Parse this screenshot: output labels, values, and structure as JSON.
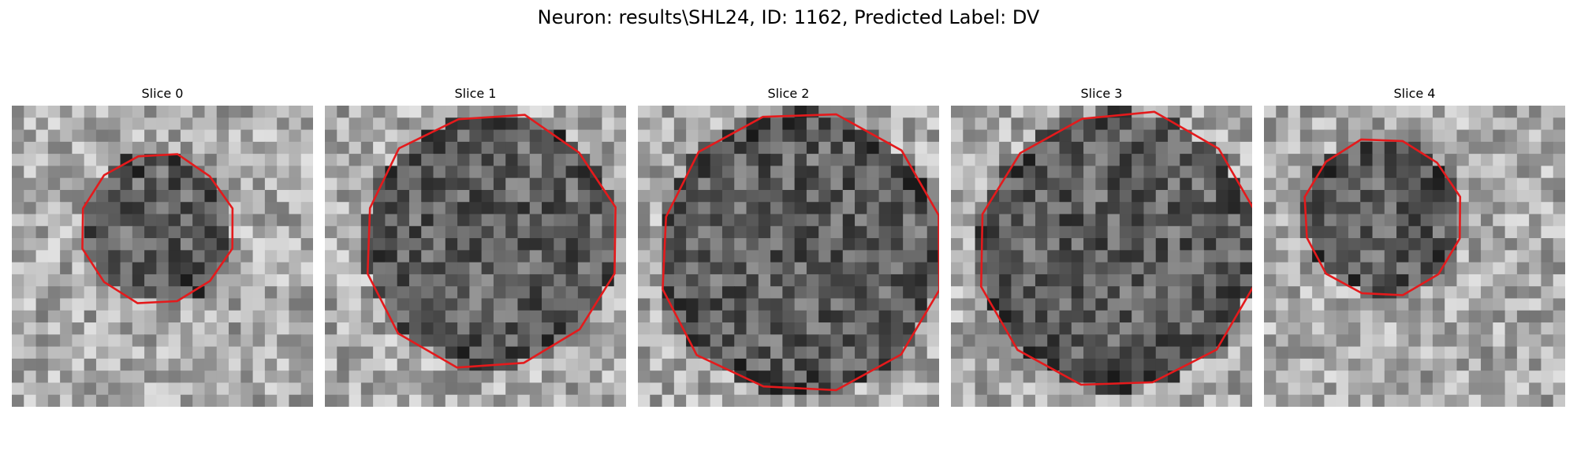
{
  "figure": {
    "title": "Neuron: results\\SHL24, ID: 1162, Predicted Label: DV"
  },
  "panels": [
    {
      "title": "Slice 0",
      "cell_radius": 6.3,
      "cell_cx": 12.1,
      "cell_cy": 10.2,
      "contour_color": "#e41a1c"
    },
    {
      "title": "Slice 1",
      "cell_radius": 10.6,
      "cell_cx": 13.8,
      "cell_cy": 11.2,
      "contour_color": "#e41a1c"
    },
    {
      "title": "Slice 2",
      "cell_radius": 11.8,
      "cell_cx": 13.4,
      "cell_cy": 12.2,
      "contour_color": "#e41a1c"
    },
    {
      "title": "Slice 3",
      "cell_radius": 11.6,
      "cell_cx": 13.8,
      "cell_cy": 12.0,
      "contour_color": "#e41a1c"
    },
    {
      "title": "Slice 4",
      "cell_radius": 6.6,
      "cell_cx": 9.8,
      "cell_cy": 9.3,
      "contour_color": "#e41a1c"
    }
  ]
}
